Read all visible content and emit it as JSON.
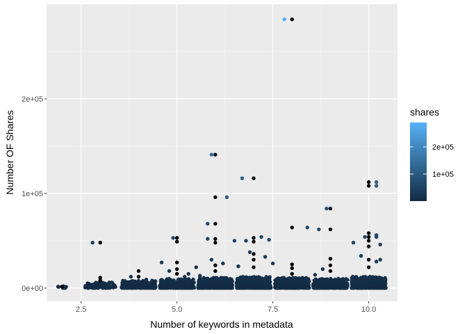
{
  "chart_data": {
    "type": "scatter",
    "xlabel": "Number of keywords in metadata",
    "ylabel": "Number OF Shares",
    "xlim": [
      1.6,
      10.75
    ],
    "ylim": [
      -14000,
      300000
    ],
    "x_ticks": [
      {
        "value": 2.5,
        "label": "2.5"
      },
      {
        "value": 5.0,
        "label": "5.0"
      },
      {
        "value": 7.5,
        "label": "7.5"
      },
      {
        "value": 10.0,
        "label": "10.0"
      }
    ],
    "y_ticks": [
      {
        "value": 0,
        "label": "0e+00"
      },
      {
        "value": 100000,
        "label": "1e+05"
      },
      {
        "value": 200000,
        "label": "2e+05"
      }
    ],
    "background_color": "#EBEBEB",
    "grid": true,
    "legend": {
      "title": "shares",
      "position": "right",
      "type": "colorbar",
      "min": 0,
      "max": 290000,
      "low_color": "#132B43",
      "high_color": "#56B1F7",
      "breaks": [
        {
          "value": 100000,
          "label": "1e+05"
        },
        {
          "value": 200000,
          "label": "2e+05"
        }
      ]
    },
    "point_series": [
      {
        "name": "overlay",
        "color": "#000000",
        "points": [
          [
            2.0,
            1500
          ],
          [
            3.0,
            48000
          ],
          [
            3.0,
            11000
          ],
          [
            3.0,
            8000
          ],
          [
            4.0,
            18000
          ],
          [
            4.0,
            12000
          ],
          [
            5.0,
            53000
          ],
          [
            5.0,
            49000
          ],
          [
            5.0,
            27000
          ],
          [
            5.0,
            20000
          ],
          [
            5.0,
            15000
          ],
          [
            6.0,
            141000
          ],
          [
            6.0,
            96000
          ],
          [
            6.0,
            68000
          ],
          [
            6.0,
            52000
          ],
          [
            6.0,
            48000
          ],
          [
            6.0,
            24000
          ],
          [
            6.0,
            18000
          ],
          [
            7.0,
            116000
          ],
          [
            7.0,
            53000
          ],
          [
            7.0,
            49000
          ],
          [
            7.0,
            36000
          ],
          [
            7.0,
            30000
          ],
          [
            7.0,
            22000
          ],
          [
            8.0,
            284000
          ],
          [
            8.0,
            64000
          ],
          [
            8.0,
            25000
          ],
          [
            8.0,
            21000
          ],
          [
            8.0,
            15000
          ],
          [
            9.0,
            84000
          ],
          [
            9.0,
            62000
          ],
          [
            9.0,
            31000
          ],
          [
            9.0,
            24000
          ],
          [
            9.0,
            18000
          ],
          [
            10.0,
            112000
          ],
          [
            10.0,
            108000
          ],
          [
            10.0,
            58000
          ],
          [
            10.0,
            54000
          ],
          [
            10.0,
            50000
          ],
          [
            10.0,
            44000
          ],
          [
            10.0,
            30000
          ],
          [
            10.0,
            22000
          ]
        ]
      },
      {
        "name": "scatter",
        "color_scale": "shares",
        "points": [
          [
            1.9,
            1500
          ],
          [
            2.8,
            48000
          ],
          [
            2.9,
            4000
          ],
          [
            3.2,
            3500
          ],
          [
            3.3,
            6000
          ],
          [
            3.8,
            12000
          ],
          [
            4.2,
            9000
          ],
          [
            4.4,
            5000
          ],
          [
            4.6,
            27000
          ],
          [
            4.8,
            18000
          ],
          [
            4.9,
            53000
          ],
          [
            5.2,
            12000
          ],
          [
            5.3,
            15000
          ],
          [
            5.5,
            22000
          ],
          [
            5.6,
            13000
          ],
          [
            5.8,
            68000
          ],
          [
            5.8,
            52000
          ],
          [
            5.9,
            141000
          ],
          [
            5.9,
            30000
          ],
          [
            6.2,
            26000
          ],
          [
            6.3,
            96000
          ],
          [
            6.5,
            50000
          ],
          [
            6.6,
            23000
          ],
          [
            6.7,
            116000
          ],
          [
            6.8,
            50000
          ],
          [
            6.9,
            38000
          ],
          [
            7.2,
            54000
          ],
          [
            7.3,
            33000
          ],
          [
            7.4,
            51000
          ],
          [
            7.5,
            26000
          ],
          [
            7.8,
            284000
          ],
          [
            8.4,
            64000
          ],
          [
            8.7,
            62000
          ],
          [
            8.8,
            20000
          ],
          [
            8.9,
            84000
          ],
          [
            8.6,
            14000
          ],
          [
            9.6,
            48000
          ],
          [
            9.8,
            34000
          ],
          [
            9.9,
            54000
          ],
          [
            10.2,
            112000
          ],
          [
            10.2,
            108000
          ],
          [
            10.2,
            56000
          ],
          [
            10.2,
            54000
          ],
          [
            10.3,
            46000
          ],
          [
            10.2,
            28000
          ],
          [
            10.3,
            30000
          ]
        ]
      }
    ],
    "clusters": [
      {
        "x_center": 2.0,
        "half_width": 0.15,
        "y_max": 2000,
        "n": 10
      },
      {
        "x_center": 3.0,
        "half_width": 0.4,
        "y_max": 6000,
        "n": 90
      },
      {
        "x_center": 4.0,
        "half_width": 0.45,
        "y_max": 8000,
        "n": 220
      },
      {
        "x_center": 5.0,
        "half_width": 0.45,
        "y_max": 10000,
        "n": 380
      },
      {
        "x_center": 6.0,
        "half_width": 0.45,
        "y_max": 11000,
        "n": 420
      },
      {
        "x_center": 7.0,
        "half_width": 0.45,
        "y_max": 12000,
        "n": 430
      },
      {
        "x_center": 8.0,
        "half_width": 0.45,
        "y_max": 11000,
        "n": 400
      },
      {
        "x_center": 9.0,
        "half_width": 0.45,
        "y_max": 10000,
        "n": 380
      },
      {
        "x_center": 10.0,
        "half_width": 0.45,
        "y_max": 12000,
        "n": 420
      }
    ]
  }
}
